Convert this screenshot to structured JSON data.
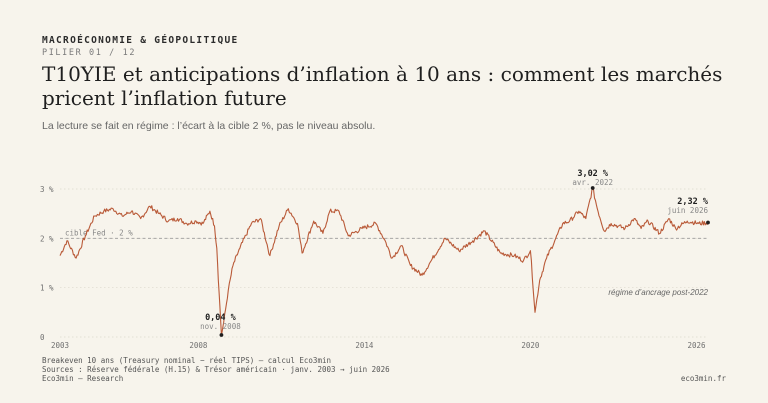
{
  "header": {
    "kicker": "MACROÉCONOMIE & GÉOPOLITIQUE",
    "pillar": "PILIER 01 / 12",
    "title": "T10YIE et anticipations d’inflation à 10 ans : comment les marchés pricent l’inflation future",
    "subtitle": "La lecture se fait en régime : l’écart à la cible 2 %, pas le niveau absolu."
  },
  "chart_data": {
    "type": "line",
    "title": "",
    "xlabel": "",
    "ylabel": "",
    "xlim": [
      "2003-01",
      "2026-06"
    ],
    "ylim": [
      0,
      3
    ],
    "y_ticks": [
      0,
      1,
      2,
      3
    ],
    "y_tick_labels": [
      "0",
      "1 %",
      "2 %",
      "3 %"
    ],
    "x_tick_labels": [
      "2003",
      "2008",
      "2014",
      "2020",
      "2026"
    ],
    "grid": "horizontal dotted",
    "series": [
      {
        "color": "#b95a38",
        "points": [
          [
            "2003-01",
            1.65
          ],
          [
            "2003-04",
            1.95
          ],
          [
            "2003-08",
            1.6
          ],
          [
            "2003-12",
            2.05
          ],
          [
            "2004-04",
            2.45
          ],
          [
            "2004-08",
            2.55
          ],
          [
            "2004-12",
            2.6
          ],
          [
            "2005-04",
            2.45
          ],
          [
            "2005-08",
            2.55
          ],
          [
            "2005-12",
            2.4
          ],
          [
            "2006-04",
            2.65
          ],
          [
            "2006-08",
            2.5
          ],
          [
            "2006-12",
            2.35
          ],
          [
            "2007-04",
            2.4
          ],
          [
            "2007-08",
            2.3
          ],
          [
            "2007-12",
            2.35
          ],
          [
            "2008-03",
            2.3
          ],
          [
            "2008-06",
            2.55
          ],
          [
            "2008-08",
            2.25
          ],
          [
            "2008-09",
            1.8
          ],
          [
            "2008-10",
            0.9
          ],
          [
            "2008-11",
            0.04
          ],
          [
            "2008-12",
            0.3
          ],
          [
            "2009-02",
            0.95
          ],
          [
            "2009-04",
            1.45
          ],
          [
            "2009-07",
            1.8
          ],
          [
            "2009-12",
            2.3
          ],
          [
            "2010-04",
            2.4
          ],
          [
            "2010-08",
            1.65
          ],
          [
            "2010-12",
            2.25
          ],
          [
            "2011-04",
            2.6
          ],
          [
            "2011-08",
            2.3
          ],
          [
            "2011-10",
            1.7
          ],
          [
            "2012-03",
            2.35
          ],
          [
            "2012-07",
            2.1
          ],
          [
            "2012-10",
            2.55
          ],
          [
            "2013-02",
            2.55
          ],
          [
            "2013-06",
            2.05
          ],
          [
            "2013-12",
            2.2
          ],
          [
            "2014-06",
            2.3
          ],
          [
            "2014-10",
            1.95
          ],
          [
            "2015-01",
            1.6
          ],
          [
            "2015-05",
            1.85
          ],
          [
            "2015-09",
            1.45
          ],
          [
            "2016-02",
            1.25
          ],
          [
            "2016-06",
            1.55
          ],
          [
            "2016-12",
            2.0
          ],
          [
            "2017-06",
            1.75
          ],
          [
            "2017-12",
            1.95
          ],
          [
            "2018-05",
            2.15
          ],
          [
            "2018-12",
            1.7
          ],
          [
            "2019-06",
            1.65
          ],
          [
            "2019-10",
            1.55
          ],
          [
            "2020-01",
            1.75
          ],
          [
            "2020-03",
            0.5
          ],
          [
            "2020-05",
            1.15
          ],
          [
            "2020-08",
            1.6
          ],
          [
            "2020-12",
            2.0
          ],
          [
            "2021-03",
            2.3
          ],
          [
            "2021-06",
            2.35
          ],
          [
            "2021-10",
            2.55
          ],
          [
            "2022-01",
            2.4
          ],
          [
            "2022-04",
            3.02
          ],
          [
            "2022-06",
            2.6
          ],
          [
            "2022-09",
            2.15
          ],
          [
            "2022-12",
            2.3
          ],
          [
            "2023-03",
            2.25
          ],
          [
            "2023-06",
            2.2
          ],
          [
            "2023-10",
            2.4
          ],
          [
            "2024-01",
            2.2
          ],
          [
            "2024-04",
            2.35
          ],
          [
            "2024-09",
            2.1
          ],
          [
            "2025-01",
            2.4
          ],
          [
            "2025-04",
            2.2
          ],
          [
            "2025-09",
            2.35
          ],
          [
            "2026-02",
            2.3
          ],
          [
            "2026-06",
            2.32
          ]
        ]
      }
    ],
    "reference_line": {
      "y": 2.0,
      "label": "cible Fed · 2 %"
    },
    "annotations": [
      {
        "value": "0,04 %",
        "date": "nov. 2008",
        "x": "2008-11",
        "y": 0.04
      },
      {
        "value": "3,02 %",
        "date": "avr. 2022",
        "x": "2022-04",
        "y": 3.02
      },
      {
        "value": "2,32 %",
        "date": "juin 2026",
        "x": "2026-06",
        "y": 2.32
      }
    ],
    "region_label": "régime d’ancrage post-2022"
  },
  "footer": {
    "line1": "Breakeven 10 ans (Treasury nominal − réel TIPS) — calcul Eco3min",
    "line2": "Sources : Réserve fédérale (H.15) & Trésor américain · janv. 2003 → juin 2026",
    "line3": "Eco3min — Research",
    "right": "eco3min.fr"
  }
}
